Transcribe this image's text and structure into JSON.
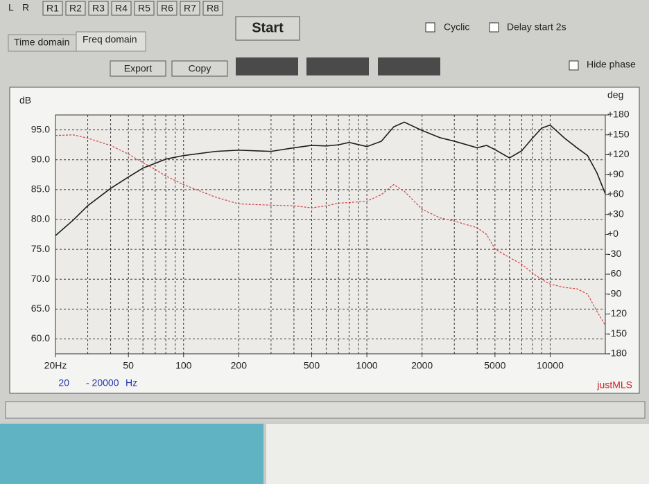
{
  "ui": {
    "channels": [
      "L",
      "R"
    ],
    "refs": [
      "R1",
      "R2",
      "R3",
      "R4",
      "R5",
      "R6",
      "R7",
      "R8"
    ],
    "start": "Start",
    "cyclic": "Cyclic",
    "delay": "Delay start 2s",
    "tabs": [
      "Time domain",
      "Freq domain"
    ],
    "export": "Export",
    "copy": "Copy",
    "hide_phase": "Hide phase",
    "range_from": "20",
    "range_to": "- 20000",
    "range_unit": "Hz",
    "brand": "justMLS"
  },
  "chart_data": {
    "type": "line",
    "y_label": "dB",
    "y2_label": "deg",
    "log_x": true,
    "grid": true,
    "x": [
      20,
      25,
      30,
      40,
      50,
      60,
      70,
      80,
      100,
      150,
      200,
      300,
      400,
      500,
      600,
      700,
      800,
      1000,
      1200,
      1400,
      1600,
      2000,
      2500,
      3000,
      4000,
      4500,
      5000,
      6000,
      7000,
      8000,
      9000,
      10000,
      12000,
      14000,
      16000,
      18000,
      20000
    ],
    "series": [
      {
        "color": "#1c1c1c",
        "style": "solid",
        "values": [
          77.3,
          79.9,
          82.3,
          85.2,
          87.1,
          88.6,
          89.4,
          90.1,
          90.7,
          91.4,
          91.6,
          91.4,
          92.0,
          92.4,
          92.3,
          92.5,
          92.9,
          92.2,
          93.1,
          95.5,
          96.3,
          94.9,
          93.7,
          93.1,
          92.0,
          92.4,
          91.7,
          90.3,
          91.5,
          93.6,
          95.3,
          95.8,
          93.6,
          92.0,
          90.7,
          87.8,
          84.3
        ]
      },
      {
        "color": "#d04040",
        "style": "dashed",
        "axis": "y2",
        "values": [
          149,
          150,
          145,
          134,
          121,
          108,
          98,
          88,
          75,
          56,
          46,
          44,
          43,
          40,
          43,
          47,
          48,
          50,
          60,
          75,
          65,
          38,
          25,
          20,
          10,
          0,
          -22,
          -35,
          -45,
          -58,
          -68,
          -75,
          -80,
          -82,
          -90,
          -116,
          -137
        ]
      }
    ],
    "xlim": [
      20,
      20000
    ],
    "xticks": [
      {
        "value": 20,
        "label": "20Hz"
      },
      50,
      100,
      200,
      500,
      1000,
      2000,
      5000,
      10000
    ],
    "xgrid": [
      20,
      30,
      40,
      50,
      60,
      70,
      80,
      90,
      100,
      200,
      300,
      400,
      500,
      600,
      700,
      800,
      900,
      1000,
      2000,
      3000,
      4000,
      5000,
      6000,
      7000,
      8000,
      9000,
      10000,
      20000
    ],
    "ylim": [
      57.5,
      97.5
    ],
    "yticks": [
      {
        "value": 60,
        "label": "60.0"
      },
      {
        "value": 65,
        "label": "65.0"
      },
      {
        "value": 70,
        "label": "70.0"
      },
      {
        "value": 75,
        "label": "75.0"
      },
      {
        "value": 80,
        "label": "80.0"
      },
      {
        "value": 85,
        "label": "85.0"
      },
      {
        "value": 90,
        "label": "90.0"
      },
      {
        "value": 95,
        "label": "95.0"
      }
    ],
    "y2lim": [
      -180,
      180
    ],
    "y2ticks": [
      -180,
      -150,
      -120,
      -90,
      -60,
      -30,
      {
        "value": 0,
        "label": "+0"
      },
      {
        "value": 30,
        "label": "+30"
      },
      {
        "value": 60,
        "label": "+60"
      },
      {
        "value": 90,
        "label": "+90"
      },
      {
        "value": 120,
        "label": "+120"
      },
      {
        "value": 150,
        "label": "+150"
      },
      {
        "value": 180,
        "label": "+180"
      }
    ]
  }
}
